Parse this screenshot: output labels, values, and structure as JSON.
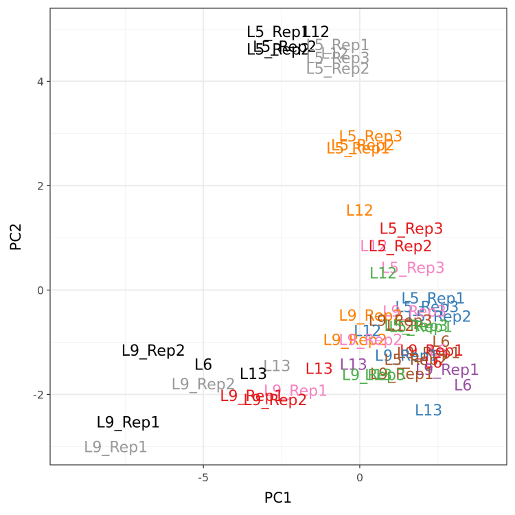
{
  "chart_data": {
    "type": "scatter",
    "title": "",
    "xlabel": "PC1",
    "ylabel": "PC2",
    "xlim": [
      -9.9,
      4.7
    ],
    "ylim": [
      -3.35,
      5.4
    ],
    "x_ticks": [
      -5,
      0
    ],
    "x_tick_labels": [
      "-5",
      "0"
    ],
    "y_ticks": [
      -2,
      0,
      2,
      4
    ],
    "y_tick_labels": [
      "-2",
      "0",
      "2",
      "4"
    ],
    "grid": true,
    "legend": "none",
    "colors": {
      "black": "#000000",
      "grey": "#999999",
      "orange": "#ff7f00",
      "red": "#e41a1c",
      "pink": "#f781bf",
      "green": "#4daf4a",
      "blue": "#377eb8",
      "brown": "#a65628",
      "purple": "#984ea3"
    },
    "points": [
      {
        "label": "L5_Rep1",
        "x": -2.6,
        "y": 4.95,
        "color": "black"
      },
      {
        "label": "L12",
        "x": -1.4,
        "y": 4.95,
        "color": "black"
      },
      {
        "label": "L5_Rep2",
        "x": -2.4,
        "y": 4.67,
        "color": "black"
      },
      {
        "label": "L5_Rep2",
        "x": -2.6,
        "y": 4.62,
        "color": "black"
      },
      {
        "label": "L5_Rep1",
        "x": -0.7,
        "y": 4.7,
        "color": "grey"
      },
      {
        "label": "L12",
        "x": -0.8,
        "y": 4.54,
        "color": "grey"
      },
      {
        "label": "L5_Rep3",
        "x": -0.7,
        "y": 4.45,
        "color": "grey"
      },
      {
        "label": "L5_Rep2",
        "x": -0.7,
        "y": 4.25,
        "color": "grey"
      },
      {
        "label": "L5_Rep3",
        "x": 0.35,
        "y": 2.95,
        "color": "orange"
      },
      {
        "label": "L5_Rep2",
        "x": 0.1,
        "y": 2.78,
        "color": "orange"
      },
      {
        "label": "L5_Rep1",
        "x": -0.05,
        "y": 2.72,
        "color": "orange"
      },
      {
        "label": "L12",
        "x": 0.0,
        "y": 1.53,
        "color": "orange"
      },
      {
        "label": "L5_Rep3",
        "x": 1.65,
        "y": 1.18,
        "color": "red"
      },
      {
        "label": "L12",
        "x": 0.45,
        "y": 0.85,
        "color": "pink"
      },
      {
        "label": "L5_Rep2",
        "x": 1.3,
        "y": 0.85,
        "color": "red"
      },
      {
        "label": "L5_Rep3",
        "x": 1.7,
        "y": 0.43,
        "color": "pink"
      },
      {
        "label": "L12",
        "x": 0.75,
        "y": 0.33,
        "color": "green"
      },
      {
        "label": "L5_Rep1",
        "x": 2.35,
        "y": -0.15,
        "color": "blue"
      },
      {
        "label": "L5_Rep3",
        "x": 2.15,
        "y": -0.32,
        "color": "blue"
      },
      {
        "label": "L5_Rep2",
        "x": 2.55,
        "y": -0.5,
        "color": "blue"
      },
      {
        "label": "L9_Rep3",
        "x": 1.75,
        "y": -0.4,
        "color": "pink"
      },
      {
        "label": "L9_Rep2",
        "x": 0.35,
        "y": -0.48,
        "color": "orange"
      },
      {
        "label": "L9_Rep3",
        "x": 1.3,
        "y": -0.58,
        "color": "brown"
      },
      {
        "label": "L5_Rep3",
        "x": 1.8,
        "y": -0.68,
        "color": "green"
      },
      {
        "label": "L12",
        "x": 0.25,
        "y": -0.78,
        "color": "blue"
      },
      {
        "label": "L12",
        "x": 1.3,
        "y": -0.68,
        "color": "brown"
      },
      {
        "label": "L5_Rep1",
        "x": 1.95,
        "y": -0.7,
        "color": "green"
      },
      {
        "label": "L9_Rep2",
        "x": -0.15,
        "y": -0.95,
        "color": "orange"
      },
      {
        "label": "L9_Rep2",
        "x": 0.35,
        "y": -0.95,
        "color": "pink"
      },
      {
        "label": "L6",
        "x": 2.6,
        "y": -0.98,
        "color": "brown"
      },
      {
        "label": "L6",
        "x": 2.5,
        "y": -1.15,
        "color": "pink"
      },
      {
        "label": "L9_Rep1",
        "x": 2.2,
        "y": -1.2,
        "color": "brown"
      },
      {
        "label": "L9_Rep1",
        "x": 2.3,
        "y": -1.15,
        "color": "red"
      },
      {
        "label": "L9_Rep1",
        "x": 1.5,
        "y": -1.25,
        "color": "blue"
      },
      {
        "label": "L5_Rep2",
        "x": 1.8,
        "y": -1.33,
        "color": "brown"
      },
      {
        "label": "L6",
        "x": 2.35,
        "y": -1.38,
        "color": "red"
      },
      {
        "label": "L13",
        "x": -0.2,
        "y": -1.42,
        "color": "purple"
      },
      {
        "label": "L9_Rep1",
        "x": 2.8,
        "y": -1.52,
        "color": "purple"
      },
      {
        "label": "L9_Rep1",
        "x": 1.35,
        "y": -1.6,
        "color": "brown"
      },
      {
        "label": "L9_Rep3",
        "x": 0.45,
        "y": -1.62,
        "color": "green"
      },
      {
        "label": "L13",
        "x": 0.6,
        "y": -1.62,
        "color": "green"
      },
      {
        "label": "L6",
        "x": 3.3,
        "y": -1.82,
        "color": "purple"
      },
      {
        "label": "L13",
        "x": 2.2,
        "y": -2.3,
        "color": "blue"
      },
      {
        "label": "L9_Rep2",
        "x": -6.6,
        "y": -1.15,
        "color": "black"
      },
      {
        "label": "L6",
        "x": -5.0,
        "y": -1.42,
        "color": "black"
      },
      {
        "label": "L13",
        "x": -2.65,
        "y": -1.45,
        "color": "grey"
      },
      {
        "label": "L13",
        "x": -3.4,
        "y": -1.6,
        "color": "black"
      },
      {
        "label": "L13",
        "x": -1.3,
        "y": -1.5,
        "color": "red"
      },
      {
        "label": "L9_Rep2",
        "x": -5.0,
        "y": -1.8,
        "color": "grey"
      },
      {
        "label": "L9_Rep1",
        "x": -2.05,
        "y": -1.92,
        "color": "pink"
      },
      {
        "label": "L9_Rep1",
        "x": -3.45,
        "y": -2.02,
        "color": "red"
      },
      {
        "label": "L9_Rep2",
        "x": -2.7,
        "y": -2.1,
        "color": "red"
      },
      {
        "label": "L9_Rep1",
        "x": -7.4,
        "y": -2.53,
        "color": "black"
      },
      {
        "label": "L9_Rep1",
        "x": -7.8,
        "y": -3.0,
        "color": "grey"
      }
    ]
  }
}
